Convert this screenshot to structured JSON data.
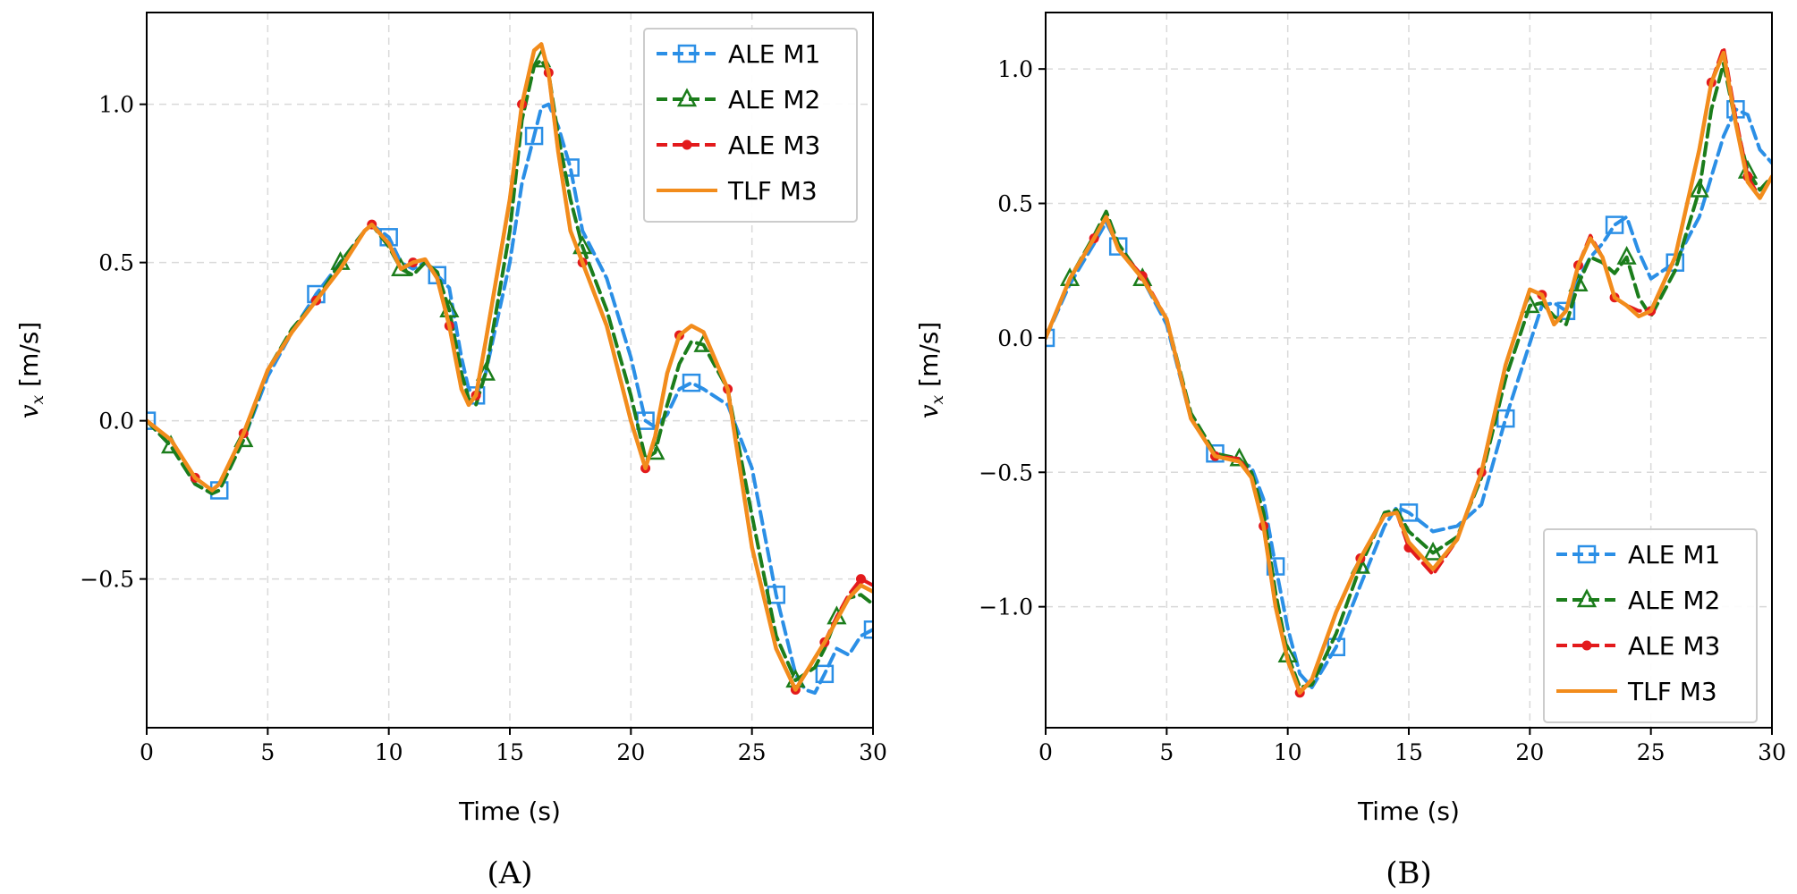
{
  "figure": {
    "captions": [
      "(A)",
      "(B)"
    ]
  },
  "colors": {
    "ALE M1": "#2b8fe6",
    "ALE M2": "#1b7d1b",
    "ALE M3": "#e31a1c",
    "TLF M3": "#f28c1c",
    "grid": "#d9d9d9"
  },
  "chart_data": [
    {
      "type": "line",
      "panel": "(A)",
      "xlabel": "Time (s)",
      "ylabel": "v_x [m/s]",
      "xlim": [
        0,
        30
      ],
      "ylim": [
        -0.97,
        1.29
      ],
      "xticks": [
        0,
        5,
        10,
        15,
        20,
        25,
        30
      ],
      "yticks": [
        -0.5,
        0.0,
        0.5,
        1.0
      ],
      "ytick_labels": [
        "−0.5",
        "0.0",
        "0.5",
        "1.0"
      ],
      "grid": true,
      "legend_position": "top-right",
      "x": [
        0,
        1,
        2,
        2.7,
        3,
        4,
        5,
        6,
        7,
        8,
        9,
        9.3,
        10,
        10.5,
        11,
        11.5,
        12,
        12.5,
        13,
        13.3,
        13.6,
        14,
        15,
        15.5,
        16,
        16.3,
        16.6,
        17,
        17.5,
        18,
        19,
        20,
        20.6,
        21,
        21.5,
        22,
        22.5,
        23,
        24,
        25,
        26,
        26.8,
        27.2,
        27.6,
        28,
        28.5,
        29,
        29.5,
        30
      ],
      "series": [
        {
          "name": "ALE M1",
          "marker": "square",
          "dashed": true,
          "values": [
            0.0,
            -0.08,
            -0.2,
            -0.23,
            -0.22,
            -0.06,
            0.14,
            0.28,
            0.4,
            0.5,
            0.6,
            0.62,
            0.58,
            0.5,
            0.48,
            0.5,
            0.46,
            0.42,
            0.2,
            0.1,
            0.08,
            0.15,
            0.5,
            0.75,
            0.9,
            0.99,
            1.0,
            0.93,
            0.8,
            0.6,
            0.45,
            0.2,
            0.0,
            -0.02,
            0.02,
            0.1,
            0.12,
            0.1,
            0.05,
            -0.15,
            -0.55,
            -0.8,
            -0.85,
            -0.86,
            -0.8,
            -0.72,
            -0.74,
            -0.68,
            -0.66
          ]
        },
        {
          "name": "ALE M2",
          "marker": "triangle",
          "dashed": true,
          "values": [
            0.0,
            -0.08,
            -0.2,
            -0.23,
            -0.22,
            -0.06,
            0.16,
            0.29,
            0.38,
            0.5,
            0.6,
            0.62,
            0.55,
            0.48,
            0.46,
            0.5,
            0.47,
            0.35,
            0.15,
            0.07,
            0.05,
            0.15,
            0.6,
            0.95,
            1.12,
            1.14,
            1.1,
            0.9,
            0.7,
            0.55,
            0.35,
            0.08,
            -0.12,
            -0.1,
            0.05,
            0.18,
            0.25,
            0.24,
            0.1,
            -0.3,
            -0.68,
            -0.82,
            -0.8,
            -0.78,
            -0.72,
            -0.62,
            -0.56,
            -0.55,
            -0.58
          ]
        },
        {
          "name": "ALE M3",
          "marker": "dot",
          "dashed": true,
          "values": [
            0.0,
            -0.06,
            -0.18,
            -0.22,
            -0.2,
            -0.04,
            0.16,
            0.28,
            0.38,
            0.48,
            0.6,
            0.62,
            0.56,
            0.48,
            0.5,
            0.51,
            0.45,
            0.3,
            0.1,
            0.05,
            0.08,
            0.25,
            0.7,
            1.0,
            1.17,
            1.19,
            1.1,
            0.85,
            0.6,
            0.5,
            0.3,
            0.0,
            -0.15,
            -0.05,
            0.15,
            0.27,
            0.3,
            0.28,
            0.1,
            -0.4,
            -0.72,
            -0.85,
            -0.8,
            -0.75,
            -0.7,
            -0.62,
            -0.55,
            -0.5,
            -0.52
          ]
        },
        {
          "name": "TLF M3",
          "marker": "none",
          "dashed": false,
          "values": [
            0.0,
            -0.06,
            -0.18,
            -0.22,
            -0.2,
            -0.04,
            0.16,
            0.28,
            0.38,
            0.48,
            0.6,
            0.62,
            0.56,
            0.48,
            0.5,
            0.51,
            0.45,
            0.3,
            0.1,
            0.05,
            0.08,
            0.25,
            0.7,
            1.0,
            1.17,
            1.19,
            1.1,
            0.85,
            0.6,
            0.5,
            0.3,
            0.0,
            -0.15,
            -0.05,
            0.15,
            0.27,
            0.3,
            0.28,
            0.1,
            -0.4,
            -0.72,
            -0.85,
            -0.8,
            -0.75,
            -0.7,
            -0.63,
            -0.56,
            -0.52,
            -0.54
          ]
        }
      ]
    },
    {
      "type": "line",
      "panel": "(B)",
      "xlabel": "Time (s)",
      "ylabel": "v_x [m/s]",
      "xlim": [
        0,
        30
      ],
      "ylim": [
        -1.45,
        1.21
      ],
      "xticks": [
        0,
        5,
        10,
        15,
        20,
        25,
        30
      ],
      "yticks": [
        -1.0,
        -0.5,
        0.0,
        0.5,
        1.0
      ],
      "ytick_labels": [
        "−1.0",
        "−0.5",
        "0.0",
        "0.5",
        "1.0"
      ],
      "grid": true,
      "legend_position": "bottom-right",
      "x": [
        0,
        1,
        2,
        2.5,
        3,
        4,
        5,
        6,
        7,
        8,
        8.5,
        9,
        9.5,
        10,
        10.5,
        11,
        12,
        13,
        14,
        14.5,
        15,
        16,
        17,
        18,
        19,
        20,
        20.5,
        21,
        21.5,
        22,
        22.5,
        23,
        23.5,
        24,
        24.5,
        25,
        26,
        27,
        27.5,
        28,
        28.5,
        29,
        29.5,
        30
      ],
      "series": [
        {
          "name": "ALE M1",
          "marker": "square",
          "dashed": true,
          "values": [
            0.0,
            0.2,
            0.35,
            0.43,
            0.34,
            0.22,
            0.05,
            -0.3,
            -0.43,
            -0.46,
            -0.48,
            -0.6,
            -0.85,
            -1.08,
            -1.25,
            -1.3,
            -1.15,
            -0.92,
            -0.7,
            -0.63,
            -0.65,
            -0.72,
            -0.7,
            -0.62,
            -0.3,
            -0.02,
            0.12,
            0.13,
            0.1,
            0.22,
            0.3,
            0.35,
            0.42,
            0.45,
            0.32,
            0.22,
            0.28,
            0.45,
            0.6,
            0.75,
            0.85,
            0.83,
            0.7,
            0.65
          ]
        },
        {
          "name": "ALE M2",
          "marker": "triangle",
          "dashed": true,
          "values": [
            0.0,
            0.22,
            0.38,
            0.47,
            0.35,
            0.22,
            0.07,
            -0.28,
            -0.43,
            -0.45,
            -0.5,
            -0.65,
            -0.95,
            -1.18,
            -1.3,
            -1.29,
            -1.1,
            -0.85,
            -0.65,
            -0.64,
            -0.72,
            -0.8,
            -0.74,
            -0.52,
            -0.15,
            0.12,
            0.13,
            0.08,
            0.05,
            0.2,
            0.3,
            0.28,
            0.24,
            0.3,
            0.15,
            0.08,
            0.25,
            0.55,
            0.85,
            1.02,
            0.8,
            0.62,
            0.55,
            0.6
          ]
        },
        {
          "name": "ALE M3",
          "marker": "dot",
          "dashed": true,
          "values": [
            0.0,
            0.22,
            0.37,
            0.45,
            0.33,
            0.23,
            0.07,
            -0.3,
            -0.44,
            -0.45,
            -0.52,
            -0.7,
            -1.0,
            -1.2,
            -1.32,
            -1.27,
            -1.02,
            -0.82,
            -0.66,
            -0.65,
            -0.78,
            -0.88,
            -0.75,
            -0.5,
            -0.1,
            0.18,
            0.16,
            0.05,
            0.1,
            0.27,
            0.38,
            0.3,
            0.15,
            0.12,
            0.1,
            0.1,
            0.3,
            0.7,
            0.95,
            1.08,
            0.82,
            0.6,
            0.52,
            0.6
          ]
        },
        {
          "name": "TLF M3",
          "marker": "none",
          "dashed": false,
          "values": [
            0.0,
            0.22,
            0.37,
            0.45,
            0.33,
            0.22,
            0.07,
            -0.3,
            -0.44,
            -0.46,
            -0.52,
            -0.7,
            -1.0,
            -1.2,
            -1.32,
            -1.27,
            -1.02,
            -0.82,
            -0.66,
            -0.65,
            -0.76,
            -0.86,
            -0.75,
            -0.5,
            -0.1,
            0.18,
            0.16,
            0.05,
            0.1,
            0.27,
            0.37,
            0.3,
            0.15,
            0.12,
            0.08,
            0.1,
            0.3,
            0.7,
            0.95,
            1.06,
            0.8,
            0.58,
            0.52,
            0.6
          ]
        }
      ]
    }
  ]
}
